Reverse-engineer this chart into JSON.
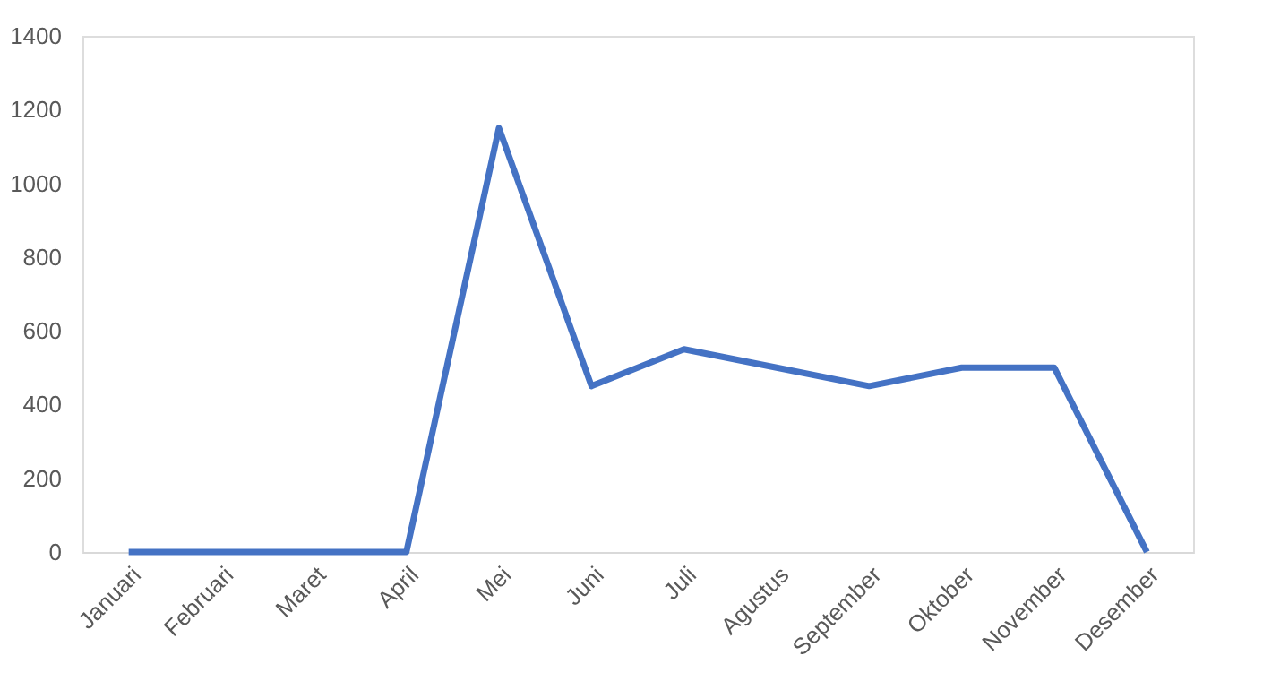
{
  "chart_data": {
    "type": "line",
    "categories": [
      "Januari",
      "Februari",
      "Maret",
      "April",
      "Mei",
      "Juni",
      "Juli",
      "Agustus",
      "September",
      "Oktober",
      "November",
      "Desember"
    ],
    "series": [
      {
        "color": "#4472c4",
        "values": [
          0,
          0,
          0,
          0,
          1150,
          450,
          550,
          500,
          450,
          500,
          500,
          0
        ]
      }
    ],
    "ylim": [
      0,
      1400
    ],
    "yticks": [
      0,
      200,
      400,
      600,
      800,
      1000,
      1200,
      1400
    ],
    "grid": false,
    "legend": false,
    "marker": "none",
    "line_style": "solid"
  }
}
